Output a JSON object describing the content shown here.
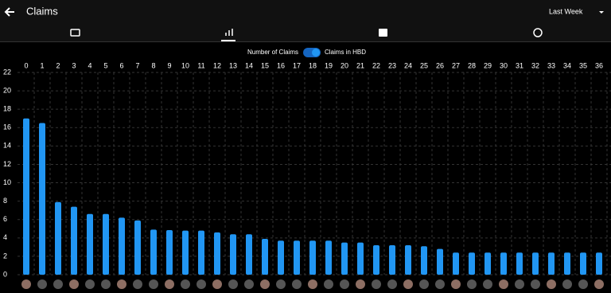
{
  "header": {
    "title": "Claims",
    "period": "Last Week"
  },
  "toggle": {
    "left_label": "Number of Claims",
    "right_label": "Claims in HBD"
  },
  "chart_data": {
    "type": "bar",
    "categories": [
      "0",
      "1",
      "2",
      "3",
      "4",
      "5",
      "6",
      "7",
      "8",
      "9",
      "10",
      "11",
      "12",
      "13",
      "14",
      "15",
      "16",
      "17",
      "18",
      "19",
      "20",
      "21",
      "22",
      "23",
      "24",
      "25",
      "26",
      "27",
      "28",
      "29",
      "30",
      "31",
      "32",
      "33",
      "34",
      "35",
      "36"
    ],
    "values": [
      17.0,
      16.5,
      7.9,
      7.4,
      6.6,
      6.6,
      6.2,
      5.9,
      4.9,
      4.85,
      4.8,
      4.8,
      4.6,
      4.4,
      4.4,
      3.9,
      3.7,
      3.7,
      3.7,
      3.7,
      3.5,
      3.5,
      3.2,
      3.2,
      3.2,
      3.1,
      2.8,
      2.4,
      2.4,
      2.4,
      2.4,
      2.4,
      2.4,
      2.4,
      2.4,
      2.4,
      2.4
    ],
    "color": "#2196f3",
    "ylim": [
      0,
      22
    ],
    "yticks": [
      0,
      2,
      4,
      6,
      8,
      10,
      12,
      14,
      16,
      18,
      20,
      22
    ],
    "grid": true
  }
}
